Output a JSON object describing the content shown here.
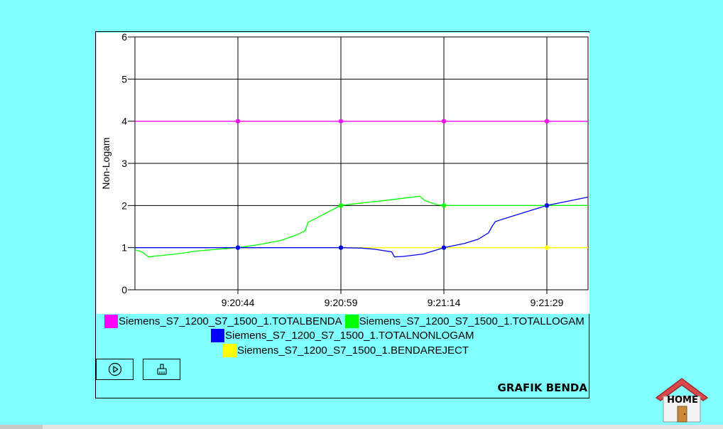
{
  "chart_data": {
    "type": "line",
    "ylabel": "Non-Logam",
    "ylim": [
      0,
      6
    ],
    "yticks": [
      "0",
      "1",
      "2",
      "3",
      "4",
      "5",
      "6"
    ],
    "xlim_seconds": [
      33,
      72
    ],
    "xticks": [
      {
        "label": "9:20:44",
        "t": 44
      },
      {
        "label": "9:20:59",
        "t": 59
      },
      {
        "label": "9:21:14",
        "t": 74
      },
      {
        "label": "9:21:29",
        "t": 89
      }
    ],
    "grid": true,
    "legend_position": "bottom",
    "series": [
      {
        "name": "Siemens_S7_1200_S7_1500_1.TOTALBENDA",
        "color": "#ff00ff",
        "points": [
          [
            29,
            4
          ],
          [
            44,
            4
          ],
          [
            59,
            4
          ],
          [
            74,
            4
          ],
          [
            89,
            4
          ],
          [
            95,
            4
          ]
        ],
        "markers": [
          [
            44,
            4
          ],
          [
            59,
            4
          ],
          [
            74,
            4
          ],
          [
            89,
            4
          ]
        ]
      },
      {
        "name": "Siemens_S7_1200_S7_1500_1.TOTALLOGAM",
        "color": "#00ff00",
        "points": [
          [
            29,
            0.95
          ],
          [
            30,
            0.9
          ],
          [
            31,
            0.78
          ],
          [
            32,
            0.8
          ],
          [
            35,
            0.85
          ],
          [
            38,
            0.92
          ],
          [
            41,
            0.96
          ],
          [
            44,
            1
          ],
          [
            47,
            1.07
          ],
          [
            50,
            1.16
          ],
          [
            52.5,
            1.3
          ],
          [
            53.8,
            1.4
          ],
          [
            54.2,
            1.6
          ],
          [
            56,
            1.75
          ],
          [
            58,
            1.92
          ],
          [
            59,
            2
          ],
          [
            62,
            2.06
          ],
          [
            65,
            2.11
          ],
          [
            68,
            2.17
          ],
          [
            70.5,
            2.22
          ],
          [
            71.2,
            2.12
          ],
          [
            73,
            2.02
          ],
          [
            74,
            2
          ],
          [
            89,
            2
          ],
          [
            95,
            2
          ]
        ],
        "markers": [
          [
            44,
            1
          ],
          [
            59,
            2
          ],
          [
            74,
            2
          ],
          [
            89,
            2
          ]
        ]
      },
      {
        "name": "Siemens_S7_1200_S7_1500_1.TOTALNONLOGAM",
        "color": "#0000ff",
        "points": [
          [
            29,
            1
          ],
          [
            44,
            1
          ],
          [
            59,
            1
          ],
          [
            62,
            0.99
          ],
          [
            64,
            0.96
          ],
          [
            66.4,
            0.9
          ],
          [
            66.8,
            0.78
          ],
          [
            68,
            0.79
          ],
          [
            71,
            0.85
          ],
          [
            74,
            1
          ],
          [
            77,
            1.1
          ],
          [
            79,
            1.2
          ],
          [
            80.5,
            1.35
          ],
          [
            81,
            1.5
          ],
          [
            81.5,
            1.62
          ],
          [
            84,
            1.75
          ],
          [
            86,
            1.85
          ],
          [
            89,
            2
          ],
          [
            92,
            2.1
          ],
          [
            95,
            2.2
          ]
        ],
        "markers": [
          [
            44,
            1
          ],
          [
            59,
            1
          ],
          [
            74,
            1
          ],
          [
            89,
            2
          ]
        ]
      },
      {
        "name": "Siemens_S7_1200_S7_1500_1.BENDAREJECT",
        "color": "#ffff00",
        "points": [
          [
            29,
            1
          ],
          [
            44,
            1
          ],
          [
            59,
            1
          ],
          [
            74,
            1
          ],
          [
            89,
            1
          ],
          [
            95,
            1
          ]
        ],
        "markers": [
          [
            89,
            1
          ]
        ]
      }
    ]
  },
  "legend_rows": [
    [
      0,
      1
    ],
    [
      2
    ],
    [
      3
    ]
  ],
  "toolbar": {
    "play_icon": "play-icon",
    "clear_icon": "broom-icon"
  },
  "footer": {
    "chart_name": "GRAFIK BENDA"
  },
  "home": {
    "label": "HOME"
  }
}
